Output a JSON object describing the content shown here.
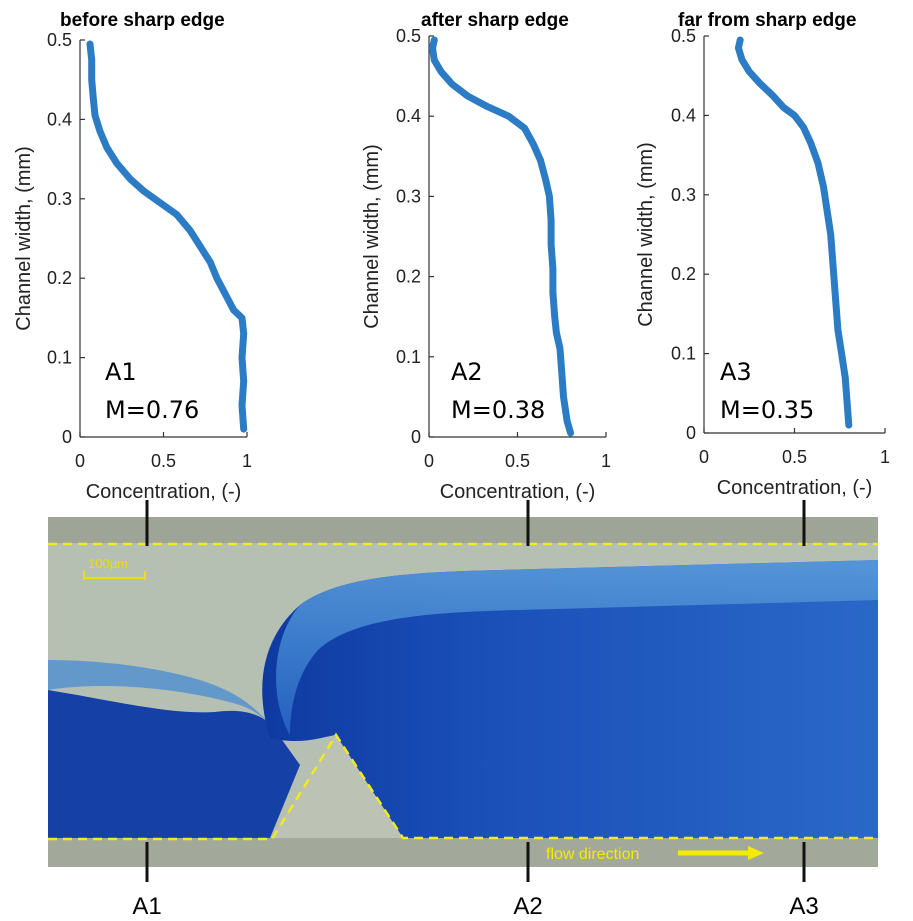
{
  "chart_data": [
    {
      "type": "line",
      "title": "before sharp edge",
      "xlabel": "Concentration, (-)",
      "ylabel": "Channel width, (mm)",
      "xlim": [
        0,
        1
      ],
      "ylim": [
        0,
        0.5
      ],
      "xticks": [
        "0",
        "0.5",
        "1"
      ],
      "yticks": [
        "0",
        "0.1",
        "0.2",
        "0.3",
        "0.4",
        "0.5"
      ],
      "annotation": [
        "A1",
        "M=0.76"
      ],
      "points": [
        [
          0.98,
          0.01
        ],
        [
          0.97,
          0.04
        ],
        [
          0.98,
          0.07
        ],
        [
          0.97,
          0.1
        ],
        [
          0.98,
          0.13
        ],
        [
          0.97,
          0.15
        ],
        [
          0.92,
          0.16
        ],
        [
          0.87,
          0.18
        ],
        [
          0.82,
          0.2
        ],
        [
          0.78,
          0.22
        ],
        [
          0.72,
          0.24
        ],
        [
          0.66,
          0.26
        ],
        [
          0.58,
          0.28
        ],
        [
          0.48,
          0.295
        ],
        [
          0.38,
          0.31
        ],
        [
          0.3,
          0.325
        ],
        [
          0.22,
          0.345
        ],
        [
          0.16,
          0.365
        ],
        [
          0.12,
          0.385
        ],
        [
          0.09,
          0.405
        ],
        [
          0.08,
          0.425
        ],
        [
          0.07,
          0.45
        ],
        [
          0.07,
          0.475
        ],
        [
          0.06,
          0.495
        ]
      ]
    },
    {
      "type": "line",
      "title": "after sharp edge",
      "xlabel": "Concentration, (-)",
      "ylabel": "Channel width, (mm)",
      "xlim": [
        0,
        1
      ],
      "ylim": [
        0,
        0.5
      ],
      "xticks": [
        "0",
        "0.5",
        "1"
      ],
      "yticks": [
        "0",
        "0.1",
        "0.2",
        "0.3",
        "0.4",
        "0.5"
      ],
      "annotation": [
        "A2",
        "M=0.38"
      ],
      "points": [
        [
          0.8,
          0.005
        ],
        [
          0.78,
          0.02
        ],
        [
          0.76,
          0.05
        ],
        [
          0.75,
          0.08
        ],
        [
          0.74,
          0.11
        ],
        [
          0.72,
          0.13
        ],
        [
          0.71,
          0.15
        ],
        [
          0.7,
          0.18
        ],
        [
          0.7,
          0.21
        ],
        [
          0.69,
          0.24
        ],
        [
          0.69,
          0.27
        ],
        [
          0.68,
          0.3
        ],
        [
          0.66,
          0.32
        ],
        [
          0.63,
          0.345
        ],
        [
          0.59,
          0.365
        ],
        [
          0.54,
          0.385
        ],
        [
          0.45,
          0.4
        ],
        [
          0.33,
          0.412
        ],
        [
          0.22,
          0.425
        ],
        [
          0.13,
          0.44
        ],
        [
          0.07,
          0.455
        ],
        [
          0.03,
          0.47
        ],
        [
          0.02,
          0.485
        ],
        [
          0.03,
          0.495
        ]
      ]
    },
    {
      "type": "line",
      "title": "far from sharp edge",
      "xlabel": "Concentration, (-)",
      "ylabel": "Channel width, (mm)",
      "xlim": [
        0,
        1
      ],
      "ylim": [
        0,
        0.5
      ],
      "xticks": [
        "0",
        "0.5",
        "1"
      ],
      "yticks": [
        "0",
        "0.1",
        "0.2",
        "0.3",
        "0.4",
        "0.5"
      ],
      "annotation": [
        "A3",
        "M=0.35"
      ],
      "points": [
        [
          0.8,
          0.01
        ],
        [
          0.79,
          0.04
        ],
        [
          0.78,
          0.07
        ],
        [
          0.76,
          0.1
        ],
        [
          0.74,
          0.13
        ],
        [
          0.73,
          0.16
        ],
        [
          0.72,
          0.19
        ],
        [
          0.71,
          0.22
        ],
        [
          0.7,
          0.25
        ],
        [
          0.68,
          0.28
        ],
        [
          0.66,
          0.31
        ],
        [
          0.63,
          0.34
        ],
        [
          0.59,
          0.365
        ],
        [
          0.55,
          0.385
        ],
        [
          0.5,
          0.4
        ],
        [
          0.44,
          0.41
        ],
        [
          0.38,
          0.425
        ],
        [
          0.31,
          0.44
        ],
        [
          0.25,
          0.455
        ],
        [
          0.21,
          0.47
        ],
        [
          0.19,
          0.485
        ],
        [
          0.2,
          0.495
        ]
      ]
    }
  ],
  "micrograph": {
    "scale_bar_label": "100µm",
    "flow_label": "flow direction",
    "markers": [
      "A1",
      "A2",
      "A3"
    ]
  },
  "colors": {
    "profile": "#2b7cc4",
    "dye_dark": "#0f3c9e",
    "dye_light": "#3a7fd0",
    "clear_fluid": "#b8c2b0",
    "wall_outline": "#f0ea20"
  }
}
